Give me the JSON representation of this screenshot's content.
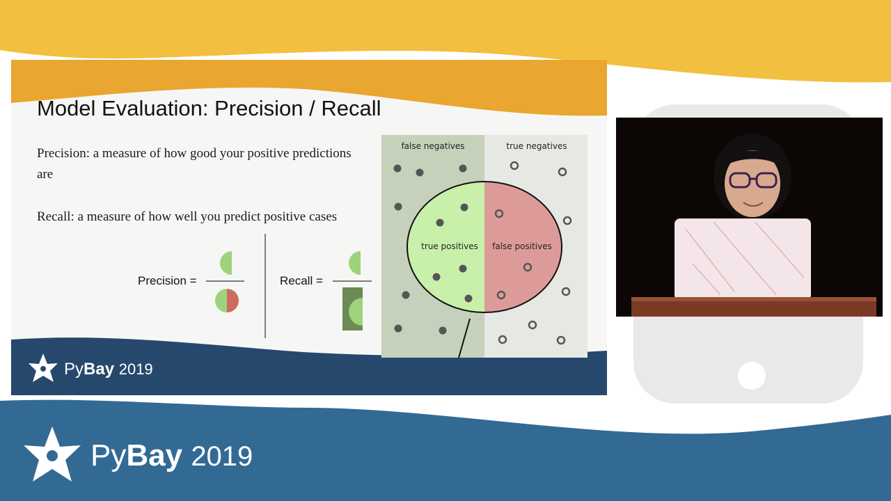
{
  "slide": {
    "title": "Model Evaluation: Precision / Recall",
    "precision_definition": "Precision: a measure of how good your positive predictions are",
    "recall_definition": "Recall: a measure of how well you predict positive cases",
    "precision_label": "Precision =",
    "recall_label": "Recall =",
    "diagram": {
      "false_negatives": "false negatives",
      "true_negatives": "true negatives",
      "true_positives": "true positives",
      "false_positives": "false positives"
    },
    "footer_brand": {
      "name_a": "Py",
      "name_b": "Bay",
      "year": "2019"
    }
  },
  "banner": {
    "name_a": "Py",
    "name_b": "Bay",
    "year": "2019"
  },
  "colors": {
    "yellow": "#f2bf3f",
    "orange": "#e9a630",
    "blue": "#336a94",
    "navy": "#27486d",
    "green": "#9fd27d",
    "red": "#cf6a62"
  },
  "icons": [
    "pybay-star-logo-icon",
    "python-logo-watermark-icon"
  ]
}
